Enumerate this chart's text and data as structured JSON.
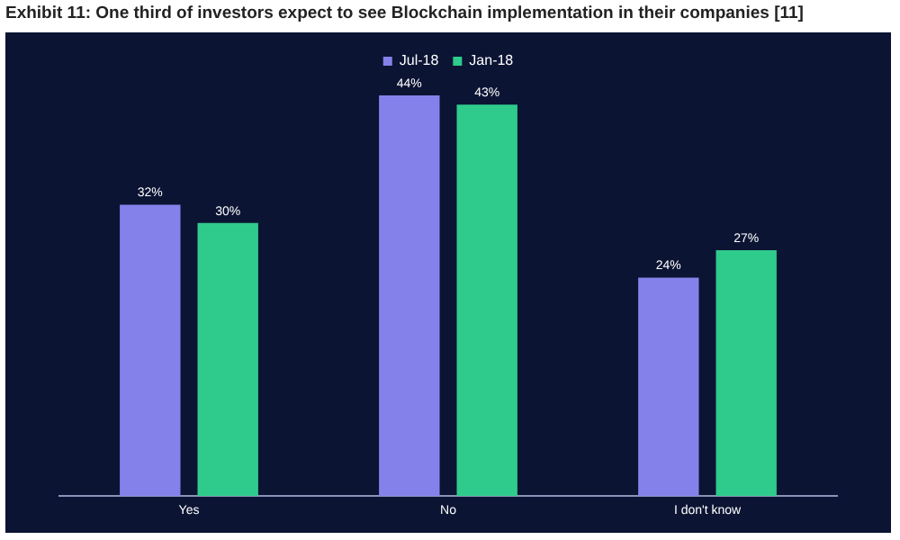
{
  "chart_data": {
    "type": "bar",
    "title": "Exhibit 11: One third of investors expect to see Blockchain implementation in their companies [11]",
    "categories": [
      "Yes",
      "No",
      "I don't know"
    ],
    "series": [
      {
        "name": "Jul-18",
        "color": "#8482ea",
        "values": [
          32,
          44,
          24
        ],
        "value_labels": [
          "32%",
          "44%",
          "24%"
        ]
      },
      {
        "name": "Jan-18",
        "color": "#2fcb8c",
        "values": [
          30,
          43,
          27
        ],
        "value_labels": [
          "30%",
          "43%",
          "27%"
        ]
      }
    ],
    "tick_labels": "x",
    "grid": false,
    "legend": "top"
  }
}
